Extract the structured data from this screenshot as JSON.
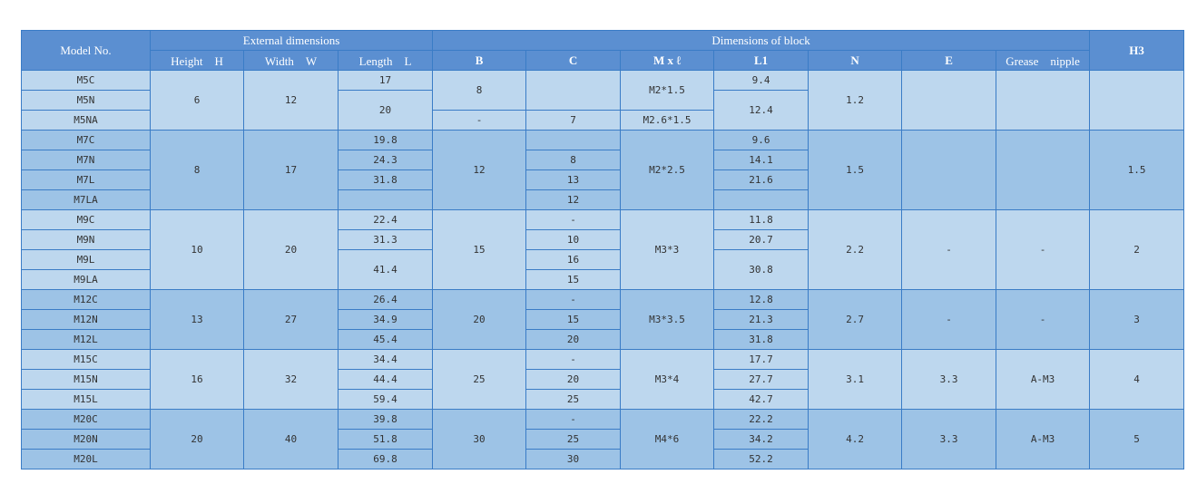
{
  "table": {
    "header": [
      [
        "Model No.",
        "External dimensions",
        "Dimensions of block",
        "H3"
      ],
      [
        "Height　H",
        "Width　W",
        "Length　L",
        "B",
        "C",
        "M x ℓ",
        "L1",
        "N",
        "E",
        "Grease　nipple"
      ]
    ],
    "rows": [
      [
        "M5C",
        "6",
        "12",
        "17",
        "8",
        "M2*1.5",
        "9.4",
        "1.2"
      ],
      [
        "M5N",
        "20",
        "12.4"
      ],
      [
        "M5NA",
        "-",
        "7",
        "M2.6*1.5"
      ],
      [
        "M7C",
        "8",
        "17",
        "19.8",
        "12",
        "M2*2.5",
        "9.6",
        "1.5",
        "1.5"
      ],
      [
        "M7N",
        "24.3",
        "8",
        "14.1"
      ],
      [
        "M7L",
        "31.8",
        "13",
        "21.6"
      ],
      [
        "M7LA",
        "12"
      ],
      [
        "M9C",
        "10",
        "20",
        "22.4",
        "15",
        "-",
        "M3*3",
        "11.8",
        "2.2",
        "-",
        "-",
        "2"
      ],
      [
        "M9N",
        "31.3",
        "10",
        "20.7"
      ],
      [
        "M9L",
        "41.4",
        "16",
        "30.8"
      ],
      [
        "M9LA",
        "15"
      ],
      [
        "M12C",
        "13",
        "27",
        "26.4",
        "20",
        "-",
        "M3*3.5",
        "12.8",
        "2.7",
        "-",
        "-",
        "3"
      ],
      [
        "M12N",
        "34.9",
        "15",
        "21.3"
      ],
      [
        "M12L",
        "45.4",
        "20",
        "31.8"
      ],
      [
        "M15C",
        "16",
        "32",
        "34.4",
        "25",
        "-",
        "M3*4",
        "17.7",
        "3.1",
        "3.3",
        "A-M3",
        "4"
      ],
      [
        "M15N",
        "44.4",
        "20",
        "27.7"
      ],
      [
        "M15L",
        "59.4",
        "25",
        "42.7"
      ],
      [
        "M20C",
        "20",
        "40",
        "39.8",
        "30",
        "-",
        "M4*6",
        "22.2",
        "4.2",
        "3.3",
        "A-M3",
        "5"
      ],
      [
        "M20N",
        "51.8",
        "25",
        "34.2"
      ],
      [
        "M20L",
        "69.8",
        "30",
        "52.2"
      ]
    ]
  }
}
